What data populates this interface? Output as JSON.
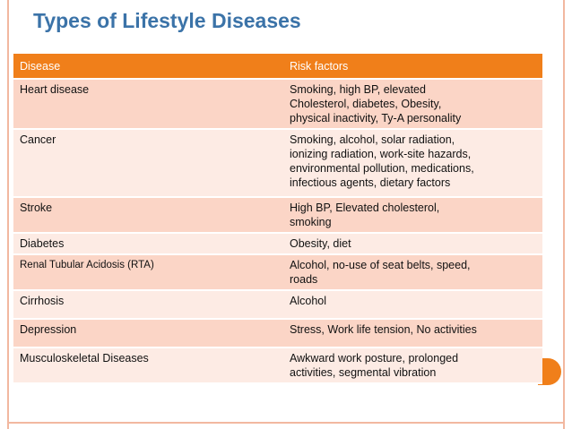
{
  "title": "Types of Lifestyle Diseases",
  "table": {
    "headers": [
      "Disease",
      "Risk factors"
    ],
    "rows": [
      {
        "disease": "Heart disease",
        "risk": [
          "Smoking, high BP, elevated",
          "Cholesterol, diabetes, Obesity,",
          "physical inactivity, Ty-A personality"
        ]
      },
      {
        "disease": "Cancer",
        "risk": [
          "Smoking, alcohol, solar radiation,",
          "ionizing radiation, work-site hazards,",
          "environmental pollution, medications,",
          "infectious agents, dietary factors"
        ]
      },
      {
        "disease": "Stroke",
        "risk": [
          "High BP, Elevated cholesterol,",
          "smoking"
        ]
      },
      {
        "disease": "Diabetes",
        "risk": [
          "Obesity, diet"
        ]
      },
      {
        "disease": "Renal Tubular Acidosis (RTA)",
        "risk": [
          "Alcohol, no-use of seat belts, speed,",
          "roads"
        ]
      },
      {
        "disease": "Cirrhosis",
        "risk": [
          "Alcohol"
        ]
      },
      {
        "disease": "Depression",
        "risk": [
          "Stress, Work life tension, No activities"
        ]
      },
      {
        "disease": "Musculoskeletal Diseases",
        "risk": [
          "Awkward work posture, prolonged",
          "activities, segmental vibration"
        ]
      }
    ]
  },
  "colors": {
    "header": "#f07f1a",
    "row_dark": "#fbd5c6",
    "row_light": "#fdebe4",
    "title": "#3b73a8"
  }
}
